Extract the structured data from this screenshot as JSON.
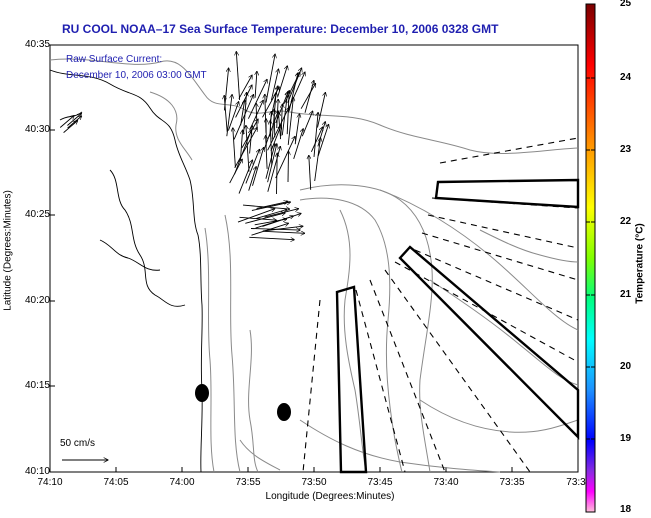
{
  "title": "RU COOL  NOAA–17  Sea Surface Temperature:  December 10, 2006 0328 GMT",
  "axes": {
    "xlabel": "Longitude (Degrees:Minutes)",
    "ylabel": "Latitude (Degrees:Minutes)",
    "xticks": [
      "74:10",
      "74:05",
      "74:00",
      "73:55",
      "73:50",
      "73:45",
      "73:40",
      "73:35",
      "73:3"
    ],
    "yticks": [
      "40:35",
      "40:30",
      "40:25",
      "40:20",
      "40:15",
      "40:10"
    ]
  },
  "annotation": {
    "line1": "Raw Surface Current:",
    "line2": "December 10, 2006 03:00 GMT"
  },
  "scale": {
    "label": "50 cm/s"
  },
  "colorbar": {
    "title": "Temperature (°C)",
    "ticks": [
      "25",
      "24",
      "23",
      "22",
      "21",
      "20",
      "19",
      "18"
    ],
    "colors": [
      "#8b0000",
      "#ff0000",
      "#ff8c00",
      "#ffff00",
      "#7fff00",
      "#00ff7f",
      "#00ffff",
      "#1e90ff",
      "#0000ff",
      "#8a2be2",
      "#ff00ff",
      "#ffc0cb"
    ]
  }
}
